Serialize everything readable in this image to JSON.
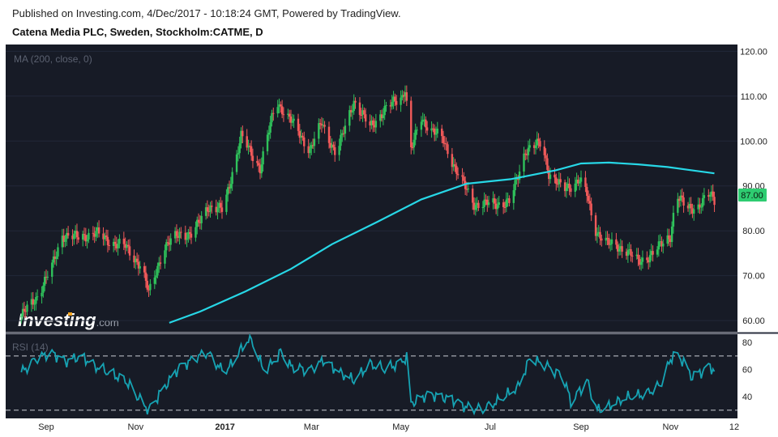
{
  "header": {
    "published": "Published on Investing.com, 4/Dec/2017 - 10:18:24 GMT, Powered by TradingView.",
    "symbol": "Catena Media PLC, Sweden, Stockholm:CATME, D"
  },
  "indicators": {
    "ma_label": "MA (200, close, 0)",
    "rsi_label": "RSI (14)"
  },
  "logo": {
    "main": "Investing",
    "suffix": ".com"
  },
  "colors": {
    "background": "#171b26",
    "up": "#2fc25b",
    "down": "#f25a5a",
    "ma": "#27d7e6",
    "rsi": "#16a3b3",
    "last_price_badge": "#2ecc71"
  },
  "chart_data": [
    {
      "type": "candlestick",
      "title": "Catena Media PLC, Sweden, Stockholm:CATME, D",
      "y_axis": {
        "ticks": [
          "120.00",
          "110.00",
          "100.00",
          "90.00",
          "80.00",
          "70.00",
          "60.00"
        ],
        "range": [
          57.5,
          121.5
        ]
      },
      "x_axis": {
        "ticks": [
          "Sep",
          "Nov",
          "2017",
          "Mar",
          "May",
          "Jul",
          "Sep",
          "Nov",
          "12"
        ],
        "bold_ticks": [
          "2017"
        ]
      },
      "last_price": "87.00",
      "price_path": [
        [
          "2016-08-15",
          61
        ],
        [
          "2016-08-25",
          65
        ],
        [
          "2016-09-05",
          72
        ],
        [
          "2016-09-12",
          79
        ],
        [
          "2016-09-22",
          78.5
        ],
        [
          "2016-10-05",
          79.5
        ],
        [
          "2016-10-15",
          77.5
        ],
        [
          "2016-10-25",
          76.5
        ],
        [
          "2016-11-05",
          72
        ],
        [
          "2016-11-10",
          66
        ],
        [
          "2016-11-20",
          76
        ],
        [
          "2016-12-01",
          79.5
        ],
        [
          "2016-12-10",
          79
        ],
        [
          "2016-12-20",
          85.5
        ],
        [
          "2016-12-31",
          84.5
        ],
        [
          "2017-01-03",
          89
        ],
        [
          "2017-01-12",
          101
        ],
        [
          "2017-01-25",
          94
        ],
        [
          "2017-02-05",
          109
        ],
        [
          "2017-02-15",
          104.5
        ],
        [
          "2017-02-28",
          98
        ],
        [
          "2017-03-08",
          104
        ],
        [
          "2017-03-18",
          97
        ],
        [
          "2017-03-30",
          109
        ],
        [
          "2017-04-10",
          103
        ],
        [
          "2017-04-20",
          107
        ],
        [
          "2017-05-02",
          110
        ],
        [
          "2017-05-04",
          112
        ],
        [
          "2017-05-08",
          98
        ],
        [
          "2017-05-15",
          105
        ],
        [
          "2017-05-30",
          100
        ],
        [
          "2017-06-10",
          92
        ],
        [
          "2017-06-20",
          86
        ],
        [
          "2017-07-05",
          86
        ],
        [
          "2017-07-15",
          86.5
        ],
        [
          "2017-07-25",
          98
        ],
        [
          "2017-08-05",
          99.5
        ],
        [
          "2017-08-10",
          93
        ],
        [
          "2017-08-20",
          89
        ],
        [
          "2017-08-31",
          91.5
        ],
        [
          "2017-09-05",
          88
        ],
        [
          "2017-09-10",
          80.5
        ],
        [
          "2017-09-20",
          77
        ],
        [
          "2017-10-01",
          76
        ],
        [
          "2017-10-10",
          73
        ],
        [
          "2017-10-20",
          75
        ],
        [
          "2017-11-01",
          79
        ],
        [
          "2017-11-05",
          88
        ],
        [
          "2017-11-12",
          85
        ],
        [
          "2017-11-20",
          85.5
        ],
        [
          "2017-11-28",
          88
        ],
        [
          "2017-12-01",
          87
        ]
      ],
      "series": [
        {
          "name": "MA (200, close, 0)",
          "points": [
            [
              "2016-11-24",
              59.5
            ],
            [
              "2016-12-15",
              62
            ],
            [
              "2017-01-15",
              66.5
            ],
            [
              "2017-02-15",
              71.5
            ],
            [
              "2017-03-15",
              77
            ],
            [
              "2017-04-15",
              82
            ],
            [
              "2017-05-15",
              87
            ],
            [
              "2017-06-15",
              90.5
            ],
            [
              "2017-07-15",
              91.5
            ],
            [
              "2017-08-15",
              93.5
            ],
            [
              "2017-09-01",
              95
            ],
            [
              "2017-09-20",
              95.2
            ],
            [
              "2017-10-10",
              94.8
            ],
            [
              "2017-10-30",
              94.2
            ],
            [
              "2017-11-15",
              93.5
            ],
            [
              "2017-12-01",
              92.8
            ]
          ]
        }
      ]
    },
    {
      "type": "line",
      "title": "RSI (14)",
      "y_axis": {
        "ticks": [
          "80",
          "60",
          "40"
        ],
        "range": [
          24,
          86
        ]
      },
      "bands": [
        70,
        30
      ],
      "series": [
        {
          "name": "RSI (14)",
          "points": [
            [
              "2016-08-15",
              58
            ],
            [
              "2016-08-25",
              68
            ],
            [
              "2016-09-05",
              72
            ],
            [
              "2016-09-15",
              66
            ],
            [
              "2016-09-25",
              70
            ],
            [
              "2016-10-05",
              62
            ],
            [
              "2016-10-15",
              57
            ],
            [
              "2016-10-25",
              52
            ],
            [
              "2016-11-05",
              36
            ],
            [
              "2016-11-10",
              30
            ],
            [
              "2016-11-20",
              46
            ],
            [
              "2016-12-01",
              62
            ],
            [
              "2016-12-10",
              67
            ],
            [
              "2016-12-20",
              73
            ],
            [
              "2016-12-31",
              58
            ],
            [
              "2017-01-05",
              63
            ],
            [
              "2017-01-12",
              75
            ],
            [
              "2017-01-18",
              84
            ],
            [
              "2017-01-28",
              58
            ],
            [
              "2017-02-08",
              73
            ],
            [
              "2017-02-15",
              62
            ],
            [
              "2017-02-28",
              60
            ],
            [
              "2017-03-10",
              67
            ],
            [
              "2017-03-20",
              58
            ],
            [
              "2017-03-30",
              52
            ],
            [
              "2017-04-10",
              64
            ],
            [
              "2017-04-20",
              60
            ],
            [
              "2017-05-01",
              65
            ],
            [
              "2017-05-06",
              70
            ],
            [
              "2017-05-08",
              35
            ],
            [
              "2017-05-20",
              42
            ],
            [
              "2017-06-05",
              38
            ],
            [
              "2017-06-15",
              32
            ],
            [
              "2017-06-25",
              30
            ],
            [
              "2017-07-08",
              38
            ],
            [
              "2017-07-20",
              47
            ],
            [
              "2017-07-28",
              68
            ],
            [
              "2017-08-10",
              62
            ],
            [
              "2017-08-20",
              55
            ],
            [
              "2017-08-25",
              36
            ],
            [
              "2017-09-05",
              52
            ],
            [
              "2017-09-12",
              30
            ],
            [
              "2017-09-20",
              33
            ],
            [
              "2017-10-01",
              39
            ],
            [
              "2017-10-15",
              42
            ],
            [
              "2017-10-25",
              48
            ],
            [
              "2017-11-03",
              72
            ],
            [
              "2017-11-10",
              66
            ],
            [
              "2017-11-15",
              55
            ],
            [
              "2017-11-22",
              58
            ],
            [
              "2017-11-28",
              63
            ],
            [
              "2017-12-01",
              58
            ]
          ]
        }
      ]
    }
  ]
}
